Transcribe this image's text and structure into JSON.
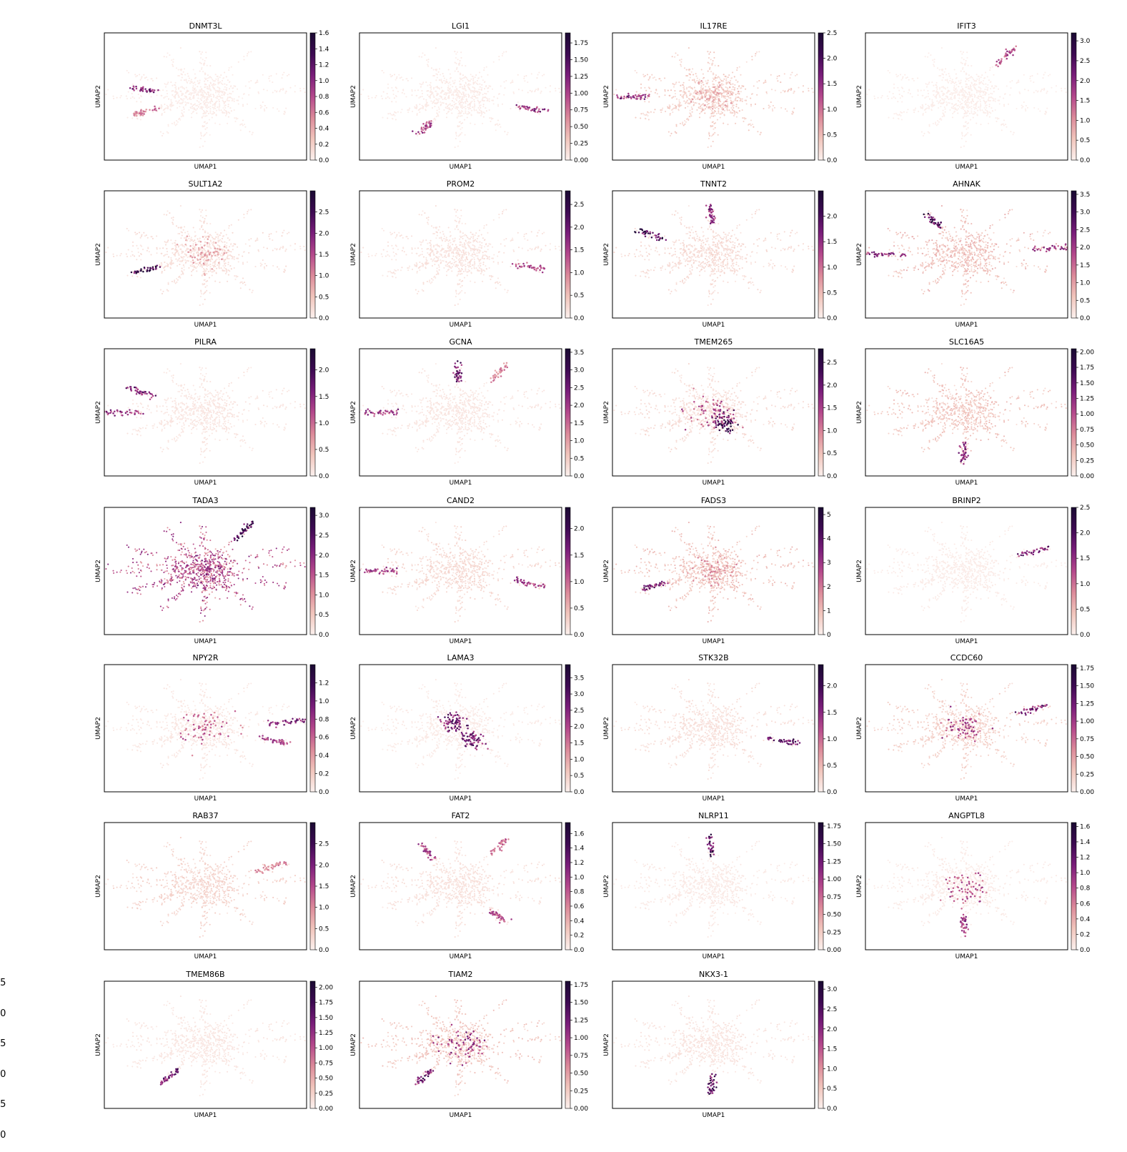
{
  "figure": {
    "colormap": [
      "#fcf1ee",
      "#f1c5bc",
      "#dc8a9a",
      "#b4488c",
      "#7a1d7a",
      "#3d0a52",
      "#1a0a32"
    ],
    "stray_colorbar_ticks": [
      ".5",
      ".0",
      ".5",
      ".0",
      ".5",
      ".0"
    ]
  },
  "chart_data": [
    {
      "type": "scatter",
      "title": "DNMT3L",
      "xlabel": "UMAP1",
      "ylabel": "UMAP2",
      "colorbar": {
        "min": 0.0,
        "max": 1.6,
        "ticks": [
          "0.0",
          "0.2",
          "0.4",
          "0.6",
          "0.8",
          "1.0",
          "1.2",
          "1.4",
          "1.6"
        ]
      },
      "background_expression": 0.04,
      "hotspots": [
        {
          "cluster": "arm-left-top",
          "value": 1.0
        },
        {
          "cluster": "arm-left-low",
          "value": 0.6
        }
      ]
    },
    {
      "type": "scatter",
      "title": "LGI1",
      "xlabel": "UMAP1",
      "ylabel": "UMAP2",
      "colorbar": {
        "min": 0.0,
        "max": 1.9,
        "ticks": [
          "0.00",
          "0.25",
          "0.50",
          "0.75",
          "1.00",
          "1.25",
          "1.50",
          "1.75"
        ]
      },
      "background_expression": 0.05,
      "hotspots": [
        {
          "cluster": "arm-right-low",
          "value": 1.1
        },
        {
          "cluster": "arm-bottom-left",
          "value": 1.0
        }
      ]
    },
    {
      "type": "scatter",
      "title": "IL17RE",
      "xlabel": "UMAP1",
      "ylabel": "UMAP2",
      "colorbar": {
        "min": 0.0,
        "max": 2.5,
        "ticks": [
          "0.0",
          "0.5",
          "1.0",
          "1.5",
          "2.0",
          "2.5"
        ]
      },
      "background_expression": 0.3,
      "hotspots": [
        {
          "cluster": "arm-far-left",
          "value": 1.5
        },
        {
          "cluster": "center",
          "value": 0.6
        }
      ]
    },
    {
      "type": "scatter",
      "title": "IFIT3",
      "xlabel": "UMAP1",
      "ylabel": "UMAP2",
      "colorbar": {
        "min": 0.0,
        "max": 3.2,
        "ticks": [
          "0.0",
          "0.5",
          "1.0",
          "1.5",
          "2.0",
          "2.5",
          "3.0"
        ]
      },
      "background_expression": 0.05,
      "hotspots": [
        {
          "cluster": "arm-top-right",
          "value": 1.6
        }
      ]
    },
    {
      "type": "scatter",
      "title": "SULT1A2",
      "xlabel": "UMAP1",
      "ylabel": "UMAP2",
      "colorbar": {
        "min": 0.0,
        "max": 3.0,
        "ticks": [
          "0.0",
          "0.5",
          "1.0",
          "1.5",
          "2.0",
          "2.5"
        ]
      },
      "background_expression": 0.2,
      "hotspots": [
        {
          "cluster": "arm-left-low",
          "value": 2.4
        },
        {
          "cluster": "center",
          "value": 0.8
        }
      ]
    },
    {
      "type": "scatter",
      "title": "PROM2",
      "xlabel": "UMAP1",
      "ylabel": "UMAP2",
      "colorbar": {
        "min": 0.0,
        "max": 2.8,
        "ticks": [
          "0.0",
          "0.5",
          "1.0",
          "1.5",
          "2.0",
          "2.5"
        ]
      },
      "background_expression": 0.15,
      "hotspots": [
        {
          "cluster": "arm-right-low",
          "value": 1.4
        }
      ]
    },
    {
      "type": "scatter",
      "title": "TNNT2",
      "xlabel": "UMAP1",
      "ylabel": "UMAP2",
      "colorbar": {
        "min": 0.0,
        "max": 2.5,
        "ticks": [
          "0.0",
          "0.5",
          "1.0",
          "1.5",
          "2.0"
        ]
      },
      "background_expression": 0.2,
      "hotspots": [
        {
          "cluster": "arm-upper-left",
          "value": 2.0
        },
        {
          "cluster": "arm-top",
          "value": 1.5
        }
      ]
    },
    {
      "type": "scatter",
      "title": "AHNAK",
      "xlabel": "UMAP1",
      "ylabel": "UMAP2",
      "colorbar": {
        "min": 0.0,
        "max": 3.6,
        "ticks": [
          "0.0",
          "0.5",
          "1.0",
          "1.5",
          "2.0",
          "2.5",
          "3.0",
          "3.5"
        ]
      },
      "background_expression": 0.6,
      "hotspots": [
        {
          "cluster": "arm-top-left",
          "value": 2.8
        },
        {
          "cluster": "arm-far-left",
          "value": 2.2
        },
        {
          "cluster": "arm-right",
          "value": 2.0
        }
      ]
    },
    {
      "type": "scatter",
      "title": "PILRA",
      "xlabel": "UMAP1",
      "ylabel": "UMAP2",
      "colorbar": {
        "min": 0.0,
        "max": 2.4,
        "ticks": [
          "0.0",
          "0.5",
          "1.0",
          "1.5",
          "2.0"
        ]
      },
      "background_expression": 0.1,
      "hotspots": [
        {
          "cluster": "arm-upper-left",
          "value": 1.5
        },
        {
          "cluster": "arm-far-left",
          "value": 1.4
        }
      ]
    },
    {
      "type": "scatter",
      "title": "GCNA",
      "xlabel": "UMAP1",
      "ylabel": "UMAP2",
      "colorbar": {
        "min": 0.0,
        "max": 3.6,
        "ticks": [
          "0.0",
          "0.5",
          "1.0",
          "1.5",
          "2.0",
          "2.5",
          "3.0",
          "3.5"
        ]
      },
      "background_expression": 0.15,
      "hotspots": [
        {
          "cluster": "arm-top",
          "value": 2.6
        },
        {
          "cluster": "arm-far-left",
          "value": 2.0
        },
        {
          "cluster": "arm-top-right",
          "value": 1.2
        }
      ]
    },
    {
      "type": "scatter",
      "title": "TMEM265",
      "xlabel": "UMAP1",
      "ylabel": "UMAP2",
      "colorbar": {
        "min": 0.0,
        "max": 2.8,
        "ticks": [
          "0.0",
          "0.5",
          "1.0",
          "1.5",
          "2.0",
          "2.5"
        ]
      },
      "background_expression": 0.2,
      "hotspots": [
        {
          "cluster": "center-lower-right",
          "value": 2.2
        },
        {
          "cluster": "center",
          "value": 1.4
        }
      ]
    },
    {
      "type": "scatter",
      "title": "SLC16A5",
      "xlabel": "UMAP1",
      "ylabel": "UMAP2",
      "colorbar": {
        "min": 0.0,
        "max": 2.05,
        "ticks": [
          "0.00",
          "0.25",
          "0.50",
          "0.75",
          "1.00",
          "1.25",
          "1.50",
          "1.75",
          "2.00"
        ]
      },
      "background_expression": 0.3,
      "hotspots": [
        {
          "cluster": "arm-bottom",
          "value": 1.2
        }
      ]
    },
    {
      "type": "scatter",
      "title": "TADA3",
      "xlabel": "UMAP1",
      "ylabel": "UMAP2",
      "colorbar": {
        "min": 0.0,
        "max": 3.2,
        "ticks": [
          "0.0",
          "0.5",
          "1.0",
          "1.5",
          "2.0",
          "2.5",
          "3.0"
        ]
      },
      "background_expression": 1.4,
      "hotspots": [
        {
          "cluster": "arm-top-right",
          "value": 2.6
        },
        {
          "cluster": "center",
          "value": 1.8
        }
      ]
    },
    {
      "type": "scatter",
      "title": "CAND2",
      "xlabel": "UMAP1",
      "ylabel": "UMAP2",
      "colorbar": {
        "min": 0.0,
        "max": 2.4,
        "ticks": [
          "0.0",
          "0.5",
          "1.0",
          "1.5",
          "2.0"
        ]
      },
      "background_expression": 0.2,
      "hotspots": [
        {
          "cluster": "arm-far-left",
          "value": 1.3
        },
        {
          "cluster": "arm-right-low",
          "value": 1.3
        }
      ]
    },
    {
      "type": "scatter",
      "title": "FADS3",
      "xlabel": "UMAP1",
      "ylabel": "UMAP2",
      "colorbar": {
        "min": 0.0,
        "max": 5.3,
        "ticks": [
          "0",
          "1",
          "2",
          "3",
          "4",
          "5"
        ]
      },
      "background_expression": 0.8,
      "hotspots": [
        {
          "cluster": "arm-left-low",
          "value": 3.6
        },
        {
          "cluster": "center",
          "value": 1.6
        }
      ]
    },
    {
      "type": "scatter",
      "title": "BRINP2",
      "xlabel": "UMAP1",
      "ylabel": "UMAP2",
      "colorbar": {
        "min": 0.0,
        "max": 2.5,
        "ticks": [
          "0.0",
          "0.5",
          "1.0",
          "1.5",
          "2.0",
          "2.5"
        ]
      },
      "background_expression": 0.05,
      "hotspots": [
        {
          "cluster": "arm-upper-right",
          "value": 1.6
        }
      ]
    },
    {
      "type": "scatter",
      "title": "NPY2R",
      "xlabel": "UMAP1",
      "ylabel": "UMAP2",
      "colorbar": {
        "min": 0.0,
        "max": 1.4,
        "ticks": [
          "0.0",
          "0.2",
          "0.4",
          "0.6",
          "0.8",
          "1.0",
          "1.2"
        ]
      },
      "background_expression": 0.05,
      "hotspots": [
        {
          "cluster": "arm-right",
          "value": 0.9
        },
        {
          "cluster": "arm-right-low",
          "value": 0.7
        },
        {
          "cluster": "center",
          "value": 0.6
        }
      ]
    },
    {
      "type": "scatter",
      "title": "LAMA3",
      "xlabel": "UMAP1",
      "ylabel": "UMAP2",
      "colorbar": {
        "min": 0.0,
        "max": 3.9,
        "ticks": [
          "0.0",
          "0.5",
          "1.0",
          "1.5",
          "2.0",
          "2.5",
          "3.0",
          "3.5"
        ]
      },
      "background_expression": 0.1,
      "hotspots": [
        {
          "cluster": "center-left",
          "value": 2.6
        },
        {
          "cluster": "center-lower-right",
          "value": 2.6
        }
      ]
    },
    {
      "type": "scatter",
      "title": "STK32B",
      "xlabel": "UMAP1",
      "ylabel": "UMAP2",
      "colorbar": {
        "min": 0.0,
        "max": 2.4,
        "ticks": [
          "0.0",
          "0.5",
          "1.0",
          "1.5",
          "2.0"
        ]
      },
      "background_expression": 0.15,
      "hotspots": [
        {
          "cluster": "arm-right-low",
          "value": 1.7
        }
      ]
    },
    {
      "type": "scatter",
      "title": "CCDC60",
      "xlabel": "UMAP1",
      "ylabel": "UMAP2",
      "colorbar": {
        "min": 0.0,
        "max": 1.8,
        "ticks": [
          "0.00",
          "0.25",
          "0.50",
          "0.75",
          "1.00",
          "1.25",
          "1.50",
          "1.75"
        ]
      },
      "background_expression": 0.2,
      "hotspots": [
        {
          "cluster": "arm-upper-right",
          "value": 1.2
        },
        {
          "cluster": "center",
          "value": 0.9
        }
      ]
    },
    {
      "type": "scatter",
      "title": "RAB37",
      "xlabel": "UMAP1",
      "ylabel": "UMAP2",
      "colorbar": {
        "min": 0.0,
        "max": 3.0,
        "ticks": [
          "0.0",
          "0.5",
          "1.0",
          "1.5",
          "2.0",
          "2.5"
        ]
      },
      "background_expression": 0.3,
      "hotspots": [
        {
          "cluster": "arm-upper-right",
          "value": 1.0
        }
      ]
    },
    {
      "type": "scatter",
      "title": "FAT2",
      "xlabel": "UMAP1",
      "ylabel": "UMAP2",
      "colorbar": {
        "min": 0.0,
        "max": 1.75,
        "ticks": [
          "0.0",
          "0.2",
          "0.4",
          "0.6",
          "0.8",
          "1.0",
          "1.2",
          "1.4",
          "1.6"
        ]
      },
      "background_expression": 0.1,
      "hotspots": [
        {
          "cluster": "arm-top-left",
          "value": 0.9
        },
        {
          "cluster": "arm-top-right",
          "value": 0.7
        },
        {
          "cluster": "arm-bottom-right",
          "value": 0.8
        }
      ]
    },
    {
      "type": "scatter",
      "title": "NLRP11",
      "xlabel": "UMAP1",
      "ylabel": "UMAP2",
      "colorbar": {
        "min": 0.0,
        "max": 1.8,
        "ticks": [
          "0.00",
          "0.25",
          "0.50",
          "0.75",
          "1.00",
          "1.25",
          "1.50",
          "1.75"
        ]
      },
      "background_expression": 0.05,
      "hotspots": [
        {
          "cluster": "arm-top",
          "value": 1.4
        }
      ]
    },
    {
      "type": "scatter",
      "title": "ANGPTL8",
      "xlabel": "UMAP1",
      "ylabel": "UMAP2",
      "colorbar": {
        "min": 0.0,
        "max": 1.65,
        "ticks": [
          "0.0",
          "0.2",
          "0.4",
          "0.6",
          "0.8",
          "1.0",
          "1.2",
          "1.4",
          "1.6"
        ]
      },
      "background_expression": 0.04,
      "hotspots": [
        {
          "cluster": "center",
          "value": 0.8
        },
        {
          "cluster": "arm-bottom",
          "value": 0.9
        }
      ]
    },
    {
      "type": "scatter",
      "title": "TMEM86B",
      "xlabel": "UMAP1",
      "ylabel": "UMAP2",
      "colorbar": {
        "min": 0.0,
        "max": 2.1,
        "ticks": [
          "0.00",
          "0.25",
          "0.50",
          "0.75",
          "1.00",
          "1.25",
          "1.50",
          "1.75",
          "2.00"
        ]
      },
      "background_expression": 0.08,
      "hotspots": [
        {
          "cluster": "arm-bottom-left",
          "value": 1.4
        }
      ]
    },
    {
      "type": "scatter",
      "title": "TIAM2",
      "xlabel": "UMAP1",
      "ylabel": "UMAP2",
      "colorbar": {
        "min": 0.0,
        "max": 1.8,
        "ticks": [
          "0.00",
          "0.25",
          "0.50",
          "0.75",
          "1.00",
          "1.25",
          "1.50",
          "1.75"
        ]
      },
      "background_expression": 0.25,
      "hotspots": [
        {
          "cluster": "center",
          "value": 1.0
        },
        {
          "cluster": "arm-bottom-left",
          "value": 1.3
        }
      ]
    },
    {
      "type": "scatter",
      "title": "NKX3-1",
      "xlabel": "UMAP1",
      "ylabel": "UMAP2",
      "colorbar": {
        "min": 0.0,
        "max": 3.2,
        "ticks": [
          "0.0",
          "0.5",
          "1.0",
          "1.5",
          "2.0",
          "2.5",
          "3.0"
        ]
      },
      "background_expression": 0.15,
      "hotspots": [
        {
          "cluster": "arm-bottom",
          "value": 2.4
        }
      ]
    }
  ]
}
